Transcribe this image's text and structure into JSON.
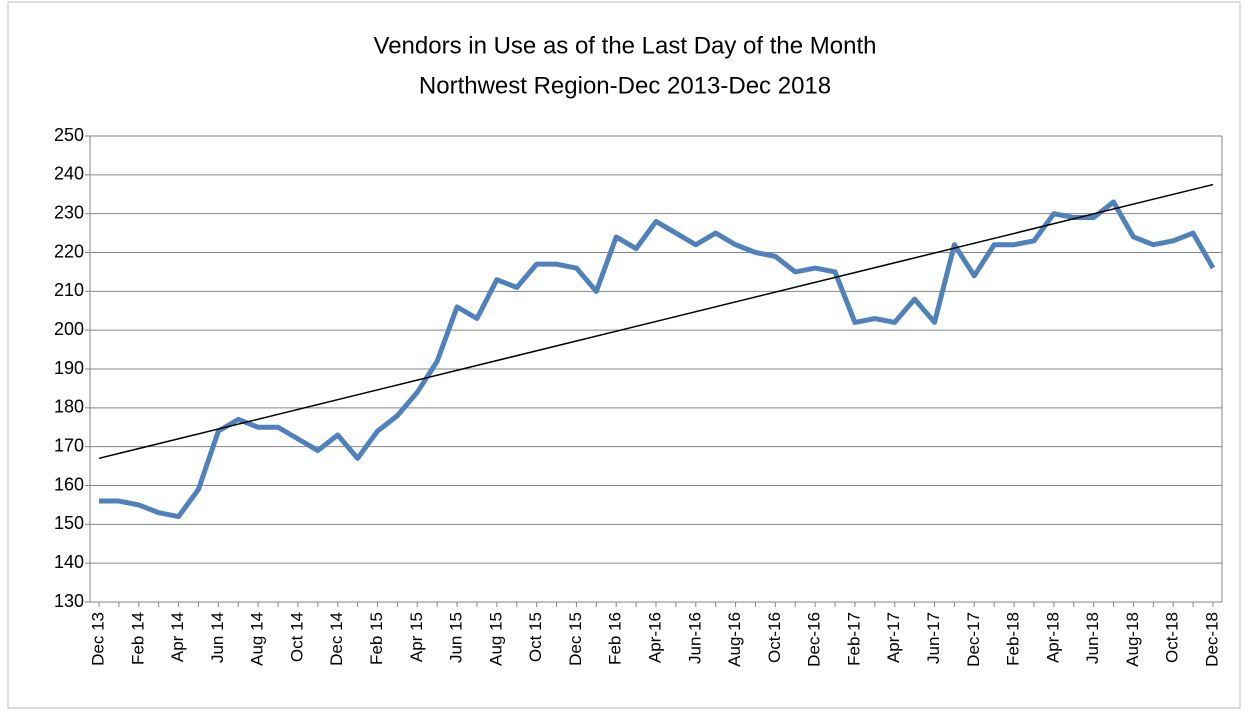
{
  "chart_data": {
    "type": "line",
    "title": "Vendors in Use as of the Last Day of the Month",
    "subtitle": "Northwest Region-Dec 2013-Dec 2018",
    "categories": [
      "Dec 13",
      null,
      "Feb 14",
      null,
      "Apr 14",
      null,
      "Jun 14",
      null,
      "Aug 14",
      null,
      "Oct 14",
      null,
      "Dec 14",
      null,
      "Feb 15",
      null,
      "Apr 15",
      null,
      "Jun 15",
      null,
      "Aug 15",
      null,
      "Oct 15",
      null,
      "Dec 15",
      null,
      "Feb 16",
      null,
      "Apr-16",
      null,
      "Jun-16",
      null,
      "Aug-16",
      null,
      "Oct-16",
      null,
      "Dec-16",
      null,
      "Feb-17",
      null,
      "Apr-17",
      null,
      "Jun-17",
      null,
      "Dec-17",
      null,
      "Feb-18",
      null,
      "Apr-18",
      null,
      "Jun-18",
      null,
      "Aug-18",
      null,
      "Oct-18",
      null,
      "Dec-18"
    ],
    "series": [
      {
        "color": "#4f81bd",
        "values": [
          156,
          156,
          155,
          153,
          152,
          159,
          174,
          177,
          175,
          175,
          172,
          169,
          173,
          167,
          174,
          178,
          184,
          192,
          206,
          203,
          213,
          211,
          217,
          217,
          216,
          210,
          224,
          221,
          228,
          225,
          222,
          225,
          222,
          220,
          219,
          215,
          216,
          215,
          202,
          203,
          202,
          208,
          202,
          222,
          214,
          222,
          222,
          223,
          230,
          229,
          229,
          233,
          224,
          222,
          223,
          225,
          216
        ]
      }
    ],
    "trendline": {
      "color": "#000000",
      "values": [
        167,
        237.5
      ]
    },
    "ylim": [
      130,
      250
    ],
    "yticks": [
      130,
      140,
      150,
      160,
      170,
      180,
      190,
      200,
      210,
      220,
      230,
      240,
      250
    ],
    "grid": true
  }
}
